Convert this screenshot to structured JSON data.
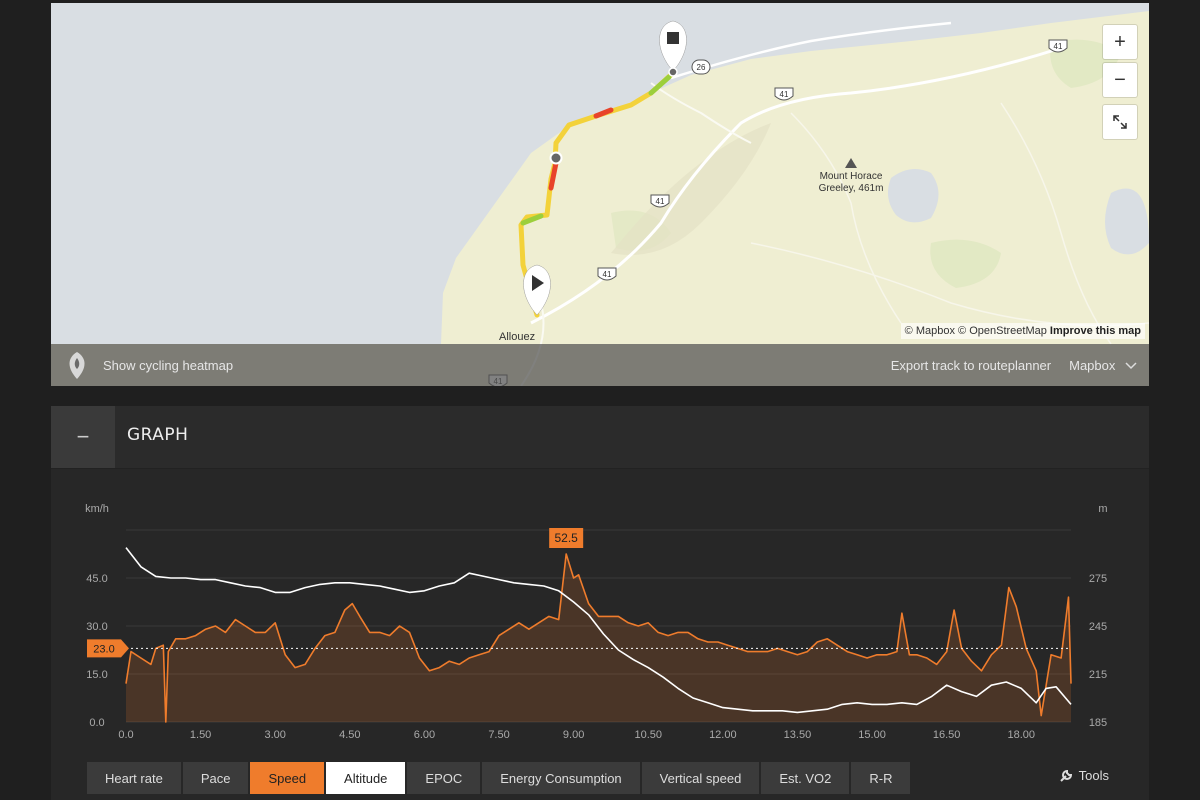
{
  "map": {
    "attribution": {
      "mapbox": "© Mapbox",
      "osm": "© OpenStreetMap",
      "improve": "Improve this map"
    },
    "zoom_in": "+",
    "zoom_out": "−",
    "fullscreen_icon": "expand-icon",
    "peak_label": "Mount Horace\nGreeley, 461m",
    "town": "Allouez",
    "shields": [
      "41",
      "26",
      "41",
      "41",
      "41",
      "41"
    ],
    "bar": {
      "heatmap_label": "Show cycling heatmap",
      "export_label": "Export track to routeplanner",
      "style_label": "Mapbox"
    }
  },
  "graph": {
    "title": "GRAPH",
    "collapse_symbol": "−",
    "left_unit": "km/h",
    "right_unit": "m",
    "avg_label": "23.0",
    "max_label": "52.5",
    "tabs": [
      "Heart rate",
      "Pace",
      "Speed",
      "Altitude",
      "EPOC",
      "Energy Consumption",
      "Vertical speed",
      "Est. VO2",
      "R-R"
    ],
    "tools_label": "Tools"
  },
  "colors": {
    "speed": "#ef7c2c",
    "altitude": "#ffffff",
    "background": "#272727"
  },
  "chart_data": {
    "type": "line",
    "x_ticks": [
      "0.0",
      "1.50",
      "3.00",
      "4.50",
      "6.00",
      "7.50",
      "9.00",
      "10.50",
      "12.00",
      "13.50",
      "15.00",
      "16.50",
      "18.00"
    ],
    "y_left_ticks": [
      "0.0",
      "15.0",
      "30.0",
      "45.0"
    ],
    "y_right_ticks": [
      "185",
      "215",
      "245",
      "275"
    ],
    "xlim": [
      0,
      19.0
    ],
    "ylim_left": [
      0,
      60
    ],
    "ylim_right": [
      185,
      305
    ],
    "average_speed": 23.0,
    "max_speed": 52.5,
    "series": [
      {
        "name": "Speed",
        "axis": "left",
        "points": [
          [
            0,
            12
          ],
          [
            0.1,
            22
          ],
          [
            0.3,
            20
          ],
          [
            0.5,
            18
          ],
          [
            0.6,
            23
          ],
          [
            0.75,
            24
          ],
          [
            0.8,
            0
          ],
          [
            0.85,
            22
          ],
          [
            1.0,
            26
          ],
          [
            1.2,
            26
          ],
          [
            1.4,
            27
          ],
          [
            1.6,
            29
          ],
          [
            1.8,
            30
          ],
          [
            2.0,
            28
          ],
          [
            2.2,
            32
          ],
          [
            2.4,
            30
          ],
          [
            2.6,
            28
          ],
          [
            2.8,
            28
          ],
          [
            3.0,
            31
          ],
          [
            3.2,
            21
          ],
          [
            3.4,
            17
          ],
          [
            3.6,
            18
          ],
          [
            3.8,
            23
          ],
          [
            4.0,
            27
          ],
          [
            4.2,
            28
          ],
          [
            4.4,
            35
          ],
          [
            4.55,
            37
          ],
          [
            4.7,
            33
          ],
          [
            4.9,
            28
          ],
          [
            5.1,
            28
          ],
          [
            5.3,
            27
          ],
          [
            5.5,
            30
          ],
          [
            5.7,
            28
          ],
          [
            5.9,
            20
          ],
          [
            6.1,
            16
          ],
          [
            6.3,
            17
          ],
          [
            6.5,
            19
          ],
          [
            6.7,
            18
          ],
          [
            6.9,
            20
          ],
          [
            7.1,
            21
          ],
          [
            7.3,
            22
          ],
          [
            7.5,
            27
          ],
          [
            7.7,
            29
          ],
          [
            7.9,
            31
          ],
          [
            8.1,
            29
          ],
          [
            8.3,
            31
          ],
          [
            8.5,
            33
          ],
          [
            8.7,
            32
          ],
          [
            8.85,
            52.5
          ],
          [
            9.0,
            45
          ],
          [
            9.1,
            46
          ],
          [
            9.3,
            37
          ],
          [
            9.5,
            33
          ],
          [
            9.7,
            33
          ],
          [
            9.9,
            33
          ],
          [
            10.1,
            31
          ],
          [
            10.3,
            30
          ],
          [
            10.5,
            31
          ],
          [
            10.7,
            28
          ],
          [
            10.9,
            27
          ],
          [
            11.1,
            28
          ],
          [
            11.3,
            28
          ],
          [
            11.5,
            26
          ],
          [
            11.7,
            25
          ],
          [
            11.9,
            25
          ],
          [
            12.1,
            24
          ],
          [
            12.3,
            23
          ],
          [
            12.5,
            22
          ],
          [
            12.7,
            22
          ],
          [
            12.9,
            22
          ],
          [
            13.1,
            23
          ],
          [
            13.3,
            22
          ],
          [
            13.5,
            21
          ],
          [
            13.7,
            22
          ],
          [
            13.9,
            25
          ],
          [
            14.1,
            26
          ],
          [
            14.3,
            24
          ],
          [
            14.5,
            22
          ],
          [
            14.7,
            21
          ],
          [
            14.9,
            20
          ],
          [
            15.1,
            21
          ],
          [
            15.3,
            21
          ],
          [
            15.5,
            22
          ],
          [
            15.6,
            34
          ],
          [
            15.75,
            21
          ],
          [
            15.9,
            21
          ],
          [
            16.1,
            20
          ],
          [
            16.3,
            18
          ],
          [
            16.5,
            22
          ],
          [
            16.65,
            35
          ],
          [
            16.8,
            23
          ],
          [
            17.0,
            19
          ],
          [
            17.2,
            16
          ],
          [
            17.4,
            21
          ],
          [
            17.6,
            24
          ],
          [
            17.75,
            42
          ],
          [
            17.9,
            36
          ],
          [
            18.1,
            23
          ],
          [
            18.3,
            16
          ],
          [
            18.4,
            2
          ],
          [
            18.6,
            21
          ],
          [
            18.8,
            20
          ],
          [
            18.95,
            39
          ],
          [
            19.0,
            12
          ]
        ]
      },
      {
        "name": "Altitude",
        "axis": "right",
        "points": [
          [
            0,
            294
          ],
          [
            0.3,
            282
          ],
          [
            0.6,
            276
          ],
          [
            0.9,
            275
          ],
          [
            1.2,
            275
          ],
          [
            1.5,
            274
          ],
          [
            1.8,
            274
          ],
          [
            2.1,
            272
          ],
          [
            2.4,
            270
          ],
          [
            2.7,
            269
          ],
          [
            3.0,
            266
          ],
          [
            3.3,
            266
          ],
          [
            3.6,
            269
          ],
          [
            3.9,
            271
          ],
          [
            4.2,
            272
          ],
          [
            4.5,
            272
          ],
          [
            4.8,
            271
          ],
          [
            5.1,
            270
          ],
          [
            5.4,
            268
          ],
          [
            5.7,
            266
          ],
          [
            6.0,
            267
          ],
          [
            6.3,
            270
          ],
          [
            6.6,
            272
          ],
          [
            6.9,
            278
          ],
          [
            7.2,
            276
          ],
          [
            7.5,
            274
          ],
          [
            7.8,
            272
          ],
          [
            8.1,
            271
          ],
          [
            8.4,
            270
          ],
          [
            8.7,
            267
          ],
          [
            9.0,
            260
          ],
          [
            9.3,
            252
          ],
          [
            9.6,
            240
          ],
          [
            9.9,
            230
          ],
          [
            10.2,
            224
          ],
          [
            10.5,
            219
          ],
          [
            10.8,
            213
          ],
          [
            11.1,
            206
          ],
          [
            11.4,
            200
          ],
          [
            11.7,
            197
          ],
          [
            12.0,
            194
          ],
          [
            12.3,
            193
          ],
          [
            12.6,
            192
          ],
          [
            12.9,
            192
          ],
          [
            13.2,
            192
          ],
          [
            13.5,
            191
          ],
          [
            13.8,
            192
          ],
          [
            14.1,
            193
          ],
          [
            14.4,
            196
          ],
          [
            14.7,
            197
          ],
          [
            15.0,
            196
          ],
          [
            15.3,
            196
          ],
          [
            15.6,
            197
          ],
          [
            15.9,
            196
          ],
          [
            16.2,
            201
          ],
          [
            16.5,
            208
          ],
          [
            16.8,
            204
          ],
          [
            17.1,
            201
          ],
          [
            17.4,
            208
          ],
          [
            17.7,
            210
          ],
          [
            18.0,
            206
          ],
          [
            18.3,
            197
          ],
          [
            18.5,
            206
          ],
          [
            18.7,
            207
          ],
          [
            19.0,
            196
          ]
        ]
      }
    ]
  }
}
